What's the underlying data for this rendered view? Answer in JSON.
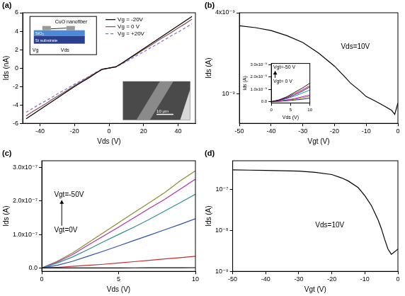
{
  "chart_data": [
    {
      "type": "line",
      "title": "(a)",
      "x_label": "Vds (V)",
      "y_label": "Ids (nA)",
      "x": [
        -48,
        -44,
        -40,
        -36,
        -32,
        -28,
        -24,
        -20,
        -16,
        -12,
        -8,
        -4,
        0,
        4,
        8,
        12,
        16,
        20,
        24,
        28,
        32,
        36,
        40,
        44,
        48
      ],
      "series": [
        {
          "name": "Vg = -20V",
          "color": "#000000",
          "line_style": "solid",
          "values": [
            -5.5,
            -5.0,
            -4.5,
            -4.0,
            -3.5,
            -3.0,
            -2.5,
            -2.0,
            -1.55,
            -1.1,
            -0.6,
            -0.15,
            0,
            0.15,
            0.6,
            1.1,
            1.6,
            2.1,
            2.6,
            3.1,
            3.6,
            4.1,
            4.6,
            5.1,
            5.6
          ]
        },
        {
          "name": "Vg = 0 V",
          "color": "#8a5050",
          "line_style": "solid",
          "values": [
            -5.2,
            -4.7,
            -4.25,
            -3.8,
            -3.3,
            -2.85,
            -2.4,
            -1.9,
            -1.45,
            -1.0,
            -0.55,
            -0.12,
            0,
            0.12,
            0.55,
            1.05,
            1.5,
            2.0,
            2.45,
            2.95,
            3.4,
            3.85,
            4.35,
            4.8,
            5.3
          ]
        },
        {
          "name": "Vg = +20V",
          "color": "#7a6fd0",
          "line_style": "dashed",
          "values": [
            -4.8,
            -4.35,
            -3.9,
            -3.5,
            -3.05,
            -2.6,
            -2.2,
            -1.75,
            -1.35,
            -0.95,
            -0.5,
            -0.1,
            0,
            0.1,
            0.5,
            0.9,
            1.35,
            1.75,
            2.2,
            2.6,
            3.05,
            3.5,
            3.9,
            4.35,
            4.8
          ]
        }
      ],
      "xlim": [
        -50,
        50
      ],
      "xticks": [
        -40,
        -20,
        0,
        20,
        40
      ],
      "ylim": [
        -6,
        6
      ],
      "yticks": [
        -6,
        -4,
        -2,
        0,
        2,
        4,
        6
      ],
      "grid": false,
      "legend": "upper center",
      "schematic": {
        "fiber": "CuO nanofiber",
        "oxide": "SiO₂",
        "substrate": "Si substrate",
        "gate": "Vg",
        "drain": "Vds"
      },
      "micrograph_scale": "10 μm"
    },
    {
      "type": "line",
      "title": "(b)",
      "x_label": "Vgt (V)",
      "y_label": "Ids (A)",
      "x": [
        -50,
        -45,
        -40,
        -35,
        -30,
        -25,
        -20,
        -17,
        -15,
        -12,
        -10,
        -8,
        -6,
        -4,
        -2,
        -1,
        0
      ],
      "series": [
        {
          "color": "#000000",
          "line_style": "solid",
          "values": [
            3.2e-09,
            3.1e-09,
            2.95e-09,
            2.7e-09,
            2.4e-09,
            2e-09,
            1.6e-09,
            1.35e-09,
            1.2e-09,
            1.05e-09,
            9.5e-10,
            9e-10,
            8.5e-10,
            8e-10,
            7.5e-10,
            7e-10,
            8.5e-10
          ]
        }
      ],
      "xlim": [
        -50,
        0
      ],
      "xticks": [
        -50,
        -40,
        -30,
        -20,
        -10,
        0
      ],
      "ylim": [
        6e-10,
        4e-09
      ],
      "yticks": [
        {
          "value": 1e-09,
          "label": "10⁻⁹"
        },
        {
          "value": 4e-09,
          "label": "4x10⁻⁹"
        }
      ],
      "log": "y",
      "grid": false,
      "annotations": [
        "Vds=10V"
      ]
    },
    {
      "type": "line",
      "x_label": "Vds (V)",
      "y_label": "Ids (A)",
      "x": [
        0,
        2,
        4,
        6,
        8,
        10
      ],
      "series": [
        {
          "color": "#000000",
          "values": [
            0,
            1.5e-10,
            4e-10,
            7.5e-10,
            1.1e-09,
            1.5e-09
          ]
        },
        {
          "color": "#e00000",
          "values": [
            0,
            1.3e-10,
            3.5e-10,
            6.5e-10,
            9.5e-10,
            1.3e-09
          ]
        },
        {
          "color": "#0000e0",
          "values": [
            0,
            1.2e-10,
            3e-10,
            5.5e-10,
            8.5e-10,
            1.2e-09
          ]
        },
        {
          "color": "#008b8b",
          "values": [
            0,
            1e-10,
            2.5e-10,
            4.5e-10,
            7e-10,
            9.5e-10
          ]
        },
        {
          "color": "#c000c0",
          "values": [
            0,
            6e-11,
            1.5e-10,
            2.5e-10,
            4e-10,
            5.5e-10
          ]
        },
        {
          "color": "#808000",
          "values": [
            0,
            5e-11,
            1.2e-10,
            2e-10,
            3.2e-10,
            4.5e-10
          ]
        },
        {
          "color": "#000080",
          "values": [
            0,
            3e-11,
            8e-11,
            1.4e-10,
            2e-10,
            3e-10
          ]
        }
      ],
      "xlim": [
        0,
        10
      ],
      "xticks": [
        0,
        5,
        10
      ],
      "ylim": [
        -1e-10,
        3.1e-09
      ],
      "yticks": [
        {
          "value": 0,
          "label": "0.0"
        },
        {
          "value": 1e-09,
          "label": "1.0x10⁻⁹"
        },
        {
          "value": 2e-09,
          "label": "2.0x10⁻⁹"
        },
        {
          "value": 3e-09,
          "label": "3.0x10⁻⁹"
        }
      ],
      "grid": false,
      "annotations": [
        "Vgt=-50 V",
        "Vgt= 0 V"
      ]
    },
    {
      "type": "line",
      "title": "(c)",
      "x_label": "Vds (V)",
      "y_label": "Ids (A)",
      "x": [
        0,
        1,
        2,
        3,
        4,
        5,
        6,
        7,
        8,
        9,
        10
      ],
      "series": [
        {
          "color": "#000000",
          "values": [
            0,
            0,
            1e-10,
            2e-10,
            3e-10,
            4e-10,
            5e-10,
            6e-10,
            7e-10,
            8e-10,
            1e-09
          ]
        },
        {
          "color": "#c03030",
          "values": [
            0,
            2e-09,
            5e-09,
            8e-09,
            1.1e-08,
            1.5e-08,
            1.9e-08,
            2.3e-08,
            2.7e-08,
            3.1e-08,
            3.5e-08
          ]
        },
        {
          "color": "#3050b0",
          "values": [
            0,
            8e-09,
            2e-08,
            3.5e-08,
            5e-08,
            6.6e-08,
            8.2e-08,
            9.8e-08,
            1.14e-07,
            1.3e-07,
            1.47e-07
          ]
        },
        {
          "color": "#2f8f8f",
          "values": [
            0,
            1.5e-08,
            3.3e-08,
            5.5e-08,
            7.8e-08,
            1e-07,
            1.22e-07,
            1.45e-07,
            1.7e-07,
            1.95e-07,
            2.2e-07
          ]
        },
        {
          "color": "#b030b0",
          "values": [
            0,
            1.8e-08,
            4e-08,
            6.8e-08,
            9.5e-08,
            1.22e-07,
            1.5e-07,
            1.78e-07,
            2.05e-07,
            2.35e-07,
            2.65e-07
          ]
        },
        {
          "color": "#8c8c28",
          "values": [
            0,
            2e-08,
            4.5e-08,
            7.5e-08,
            1.05e-07,
            1.35e-07,
            1.65e-07,
            1.95e-07,
            2.25e-07,
            2.6e-07,
            2.9e-07
          ]
        }
      ],
      "xlim": [
        0,
        10
      ],
      "xticks": [
        0,
        5,
        10
      ],
      "ylim": [
        -1e-08,
        3.2e-07
      ],
      "yticks": [
        {
          "value": 0,
          "label": "0.0"
        },
        {
          "value": 1e-07,
          "label": "1.0x10⁻⁷"
        },
        {
          "value": 2e-07,
          "label": "2.0x10⁻⁷"
        },
        {
          "value": 3e-07,
          "label": "3.0x10⁻⁷"
        }
      ],
      "grid": false,
      "annotations": [
        "Vgt=-50V",
        "Vgt=0V"
      ]
    },
    {
      "type": "line",
      "title": "(d)",
      "x_label": "Vgt (V)",
      "y_label": "Ids (A)",
      "x": [
        -50,
        -45,
        -40,
        -35,
        -30,
        -25,
        -20,
        -17,
        -15,
        -12,
        -10,
        -8,
        -6,
        -5,
        -4,
        -3,
        -2,
        -1,
        0
      ],
      "series": [
        {
          "color": "#000000",
          "line_style": "solid",
          "values": [
            3e-07,
            2.95e-07,
            2.9e-07,
            2.85e-07,
            2.8e-07,
            2.6e-07,
            2.3e-07,
            1.9e-07,
            1.6e-07,
            1.1e-07,
            7e-08,
            4e-08,
            1.8e-08,
            1.1e-08,
            6e-09,
            3.5e-09,
            2.6e-09,
            3e-09,
            3.5e-09
          ]
        }
      ],
      "xlim": [
        -50,
        0
      ],
      "xticks": [
        -50,
        -40,
        -30,
        -20,
        -10,
        0
      ],
      "ylim": [
        1e-09,
        5e-07
      ],
      "yticks": [
        {
          "value": 1e-09,
          "label": "10⁻⁹"
        },
        {
          "value": 1e-08,
          "label": "10⁻⁸"
        },
        {
          "value": 1e-07,
          "label": "10⁻⁷"
        }
      ],
      "log": "y",
      "grid": false,
      "annotations": [
        "Vds=10V"
      ]
    }
  ]
}
